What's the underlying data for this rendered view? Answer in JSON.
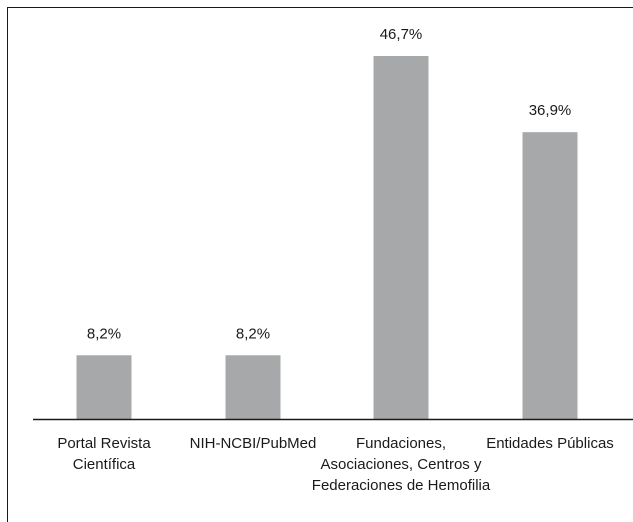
{
  "chart_data": {
    "type": "bar",
    "title": "",
    "xlabel": "",
    "ylabel": "",
    "categories": [
      [
        "Portal Revista",
        "Científica"
      ],
      [
        "NIH-NCBI/PubMed"
      ],
      [
        "Fundaciones,",
        "Asociaciones, Centros y",
        "Federaciones de Hemofilia"
      ],
      [
        "Entidades Públicas"
      ]
    ],
    "values": [
      8.2,
      8.2,
      46.7,
      36.9
    ],
    "value_labels": [
      "8,2%",
      "8,2%",
      "46,7%",
      "36,9%"
    ],
    "ylim": [
      0,
      50
    ],
    "grid": false,
    "legend": "none",
    "bar_color": "#a7a8aa",
    "axis_color": "#1a1a1a",
    "frame_color": "#1a1a1a"
  }
}
